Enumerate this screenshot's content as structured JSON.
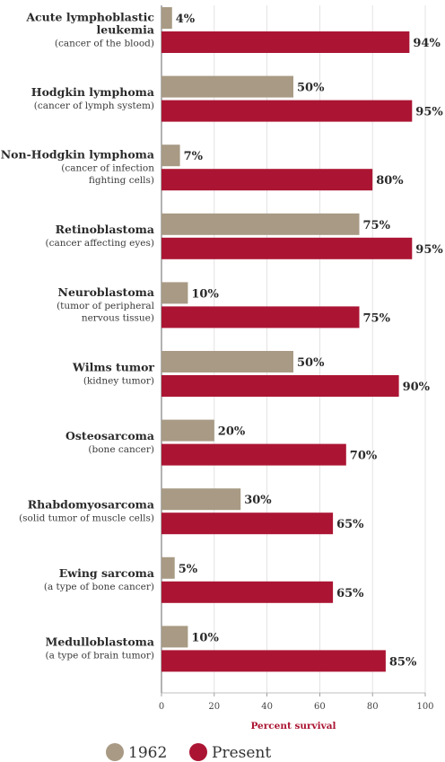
{
  "chart_data": {
    "type": "bar",
    "orientation": "horizontal",
    "categories": [
      {
        "name": [
          "Acute lymphoblastic",
          "leukemia"
        ],
        "sub": [
          "(cancer of the blood)"
        ]
      },
      {
        "name": [
          "Hodgkin lymphoma"
        ],
        "sub": [
          "(cancer of lymph system)"
        ]
      },
      {
        "name": [
          "Non-Hodgkin lymphoma"
        ],
        "sub": [
          "(cancer of infection",
          "fighting cells)"
        ]
      },
      {
        "name": [
          "Retinoblastoma"
        ],
        "sub": [
          "(cancer affecting eyes)"
        ]
      },
      {
        "name": [
          "Neuroblastoma"
        ],
        "sub": [
          "(tumor of peripheral",
          "nervous tissue)"
        ]
      },
      {
        "name": [
          "Wilms tumor"
        ],
        "sub": [
          "(kidney tumor)"
        ]
      },
      {
        "name": [
          "Osteosarcoma"
        ],
        "sub": [
          "(bone cancer)"
        ]
      },
      {
        "name": [
          "Rhabdomyosarcoma"
        ],
        "sub": [
          "(solid tumor of muscle cells)"
        ]
      },
      {
        "name": [
          "Ewing sarcoma"
        ],
        "sub": [
          "(a type of bone cancer)"
        ]
      },
      {
        "name": [
          "Medulloblastoma"
        ],
        "sub": [
          "(a type of brain tumor)"
        ]
      }
    ],
    "series": [
      {
        "name": "1962",
        "color": "#a89a84",
        "values": [
          4,
          50,
          7,
          75,
          10,
          50,
          20,
          30,
          5,
          10
        ],
        "labels": [
          "4%",
          "50%",
          "7%",
          "75%",
          "10%",
          "50%",
          "20%",
          "30%",
          "5%",
          "10%"
        ]
      },
      {
        "name": "Present",
        "color": "#ab1533",
        "values": [
          94,
          95,
          80,
          95,
          75,
          90,
          70,
          65,
          65,
          85
        ],
        "labels": [
          "94%",
          "95%",
          "80%",
          "95%",
          "75%",
          "90%",
          "70%",
          "65%",
          "65%",
          "85%"
        ]
      }
    ],
    "xlabel": "Percent survival",
    "xlabel_color": "#ab1533",
    "xlim": [
      0,
      100
    ],
    "xticks": [
      "0",
      "20",
      "40",
      "60",
      "80",
      "100"
    ],
    "grid": true,
    "legend_position": "bottom-left"
  }
}
